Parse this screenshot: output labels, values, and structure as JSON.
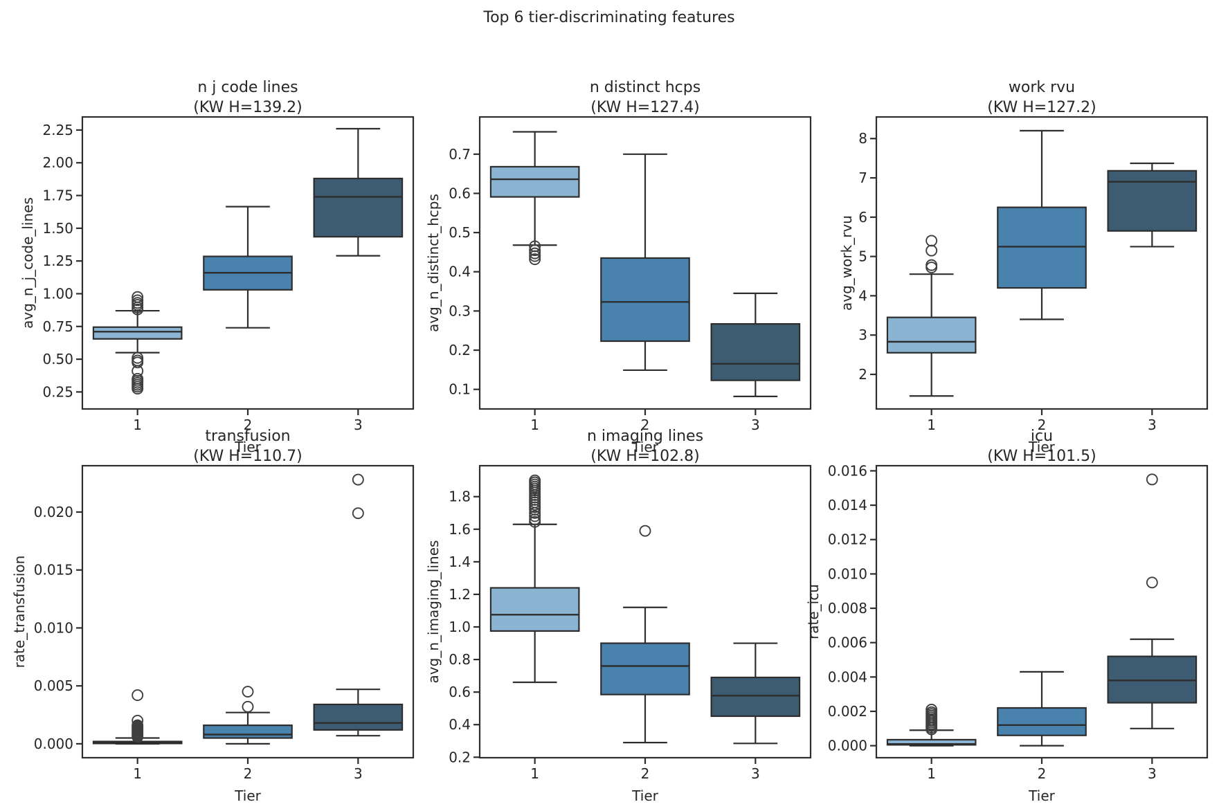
{
  "figure": {
    "suptitle": "Top 6 tier-discriminating features",
    "text_color": "#262626",
    "spine_color": "#2d2d2d",
    "box_edge_color": "#2d2d2d",
    "outlier_color": "#3f3f3f",
    "tier_colors": [
      "#8ab4d2",
      "#4a82ae",
      "#3d5b71"
    ]
  },
  "chart_data": [
    {
      "type": "box",
      "title": "n j code lines",
      "subtitle": "(KW H=139.2)",
      "ylabel": "avg_n_j_code_lines",
      "xlabel": "Tier",
      "categories": [
        "1",
        "2",
        "3"
      ],
      "ylim": [
        0.12,
        2.35
      ],
      "yticks": [
        0.25,
        0.5,
        0.75,
        1.0,
        1.25,
        1.5,
        1.75,
        2.0,
        2.25
      ],
      "ytick_decimals": 2,
      "boxes": [
        {
          "label": "1",
          "whislo": 0.55,
          "q1": 0.655,
          "med": 0.71,
          "q3": 0.745,
          "whishi": 0.87,
          "outliers": [
            0.975,
            0.95,
            0.93,
            0.915,
            0.895,
            0.88,
            0.51,
            0.49,
            0.475,
            0.41,
            0.35,
            0.335,
            0.32,
            0.305,
            0.29,
            0.275
          ]
        },
        {
          "label": "2",
          "whislo": 0.74,
          "q1": 1.03,
          "med": 1.16,
          "q3": 1.285,
          "whishi": 1.665,
          "outliers": []
        },
        {
          "label": "3",
          "whislo": 1.29,
          "q1": 1.435,
          "med": 1.74,
          "q3": 1.88,
          "whishi": 2.26,
          "outliers": []
        }
      ]
    },
    {
      "type": "box",
      "title": "n distinct hcps",
      "subtitle": "(KW H=127.4)",
      "ylabel": "avg_n_distinct_hcps",
      "xlabel": "Tier",
      "categories": [
        "1",
        "2",
        "3"
      ],
      "ylim": [
        0.05,
        0.795
      ],
      "yticks": [
        0.1,
        0.2,
        0.3,
        0.4,
        0.5,
        0.6,
        0.7
      ],
      "ytick_decimals": 1,
      "boxes": [
        {
          "label": "1",
          "whislo": 0.468,
          "q1": 0.591,
          "med": 0.636,
          "q3": 0.668,
          "whishi": 0.757,
          "outliers": [
            0.465,
            0.455,
            0.447,
            0.44,
            0.432
          ]
        },
        {
          "label": "2",
          "whislo": 0.149,
          "q1": 0.223,
          "med": 0.323,
          "q3": 0.435,
          "whishi": 0.7,
          "outliers": []
        },
        {
          "label": "3",
          "whislo": 0.082,
          "q1": 0.123,
          "med": 0.165,
          "q3": 0.267,
          "whishi": 0.345,
          "outliers": []
        }
      ]
    },
    {
      "type": "box",
      "title": "work rvu",
      "subtitle": "(KW H=127.2)",
      "ylabel": "avg_work_rvu",
      "xlabel": "Tier",
      "categories": [
        "1",
        "2",
        "3"
      ],
      "ylim": [
        1.12,
        8.55
      ],
      "yticks": [
        2,
        3,
        4,
        5,
        6,
        7,
        8
      ],
      "ytick_decimals": 0,
      "boxes": [
        {
          "label": "1",
          "whislo": 1.45,
          "q1": 2.55,
          "med": 2.83,
          "q3": 3.45,
          "whishi": 4.55,
          "outliers": [
            5.4,
            5.15,
            4.78,
            4.72
          ]
        },
        {
          "label": "2",
          "whislo": 3.4,
          "q1": 4.2,
          "med": 5.25,
          "q3": 6.25,
          "whishi": 8.2,
          "outliers": []
        },
        {
          "label": "3",
          "whislo": 5.25,
          "q1": 5.65,
          "med": 6.9,
          "q3": 7.18,
          "whishi": 7.37,
          "outliers": []
        }
      ]
    },
    {
      "type": "box",
      "title": "transfusion",
      "subtitle": "(KW H=110.7)",
      "ylabel": "rate_transfusion",
      "xlabel": "Tier",
      "categories": [
        "1",
        "2",
        "3"
      ],
      "ylim": [
        -0.0012,
        0.024
      ],
      "yticks": [
        0.0,
        0.005,
        0.01,
        0.015,
        0.02
      ],
      "ytick_decimals": 3,
      "boxes": [
        {
          "label": "1",
          "whislo": 0.0,
          "q1": 3e-05,
          "med": 0.0001,
          "q3": 0.0002,
          "whishi": 0.0005,
          "outliers": [
            0.0042,
            0.002,
            0.0016,
            0.0015,
            0.0014,
            0.0013,
            0.0012,
            0.0011,
            0.001,
            0.0009,
            0.0008,
            0.0007,
            0.0006
          ]
        },
        {
          "label": "2",
          "whislo": 0.0,
          "q1": 0.0005,
          "med": 0.0008,
          "q3": 0.0016,
          "whishi": 0.0027,
          "outliers": [
            0.0045,
            0.0032
          ]
        },
        {
          "label": "3",
          "whislo": 0.0007,
          "q1": 0.0012,
          "med": 0.0018,
          "q3": 0.0034,
          "whishi": 0.0047,
          "outliers": [
            0.0228,
            0.0199
          ]
        }
      ]
    },
    {
      "type": "box",
      "title": "n imaging lines",
      "subtitle": "(KW H=102.8)",
      "ylabel": "avg_n_imaging_lines",
      "xlabel": "Tier",
      "categories": [
        "1",
        "2",
        "3"
      ],
      "ylim": [
        0.197,
        1.99
      ],
      "yticks": [
        0.2,
        0.4,
        0.6,
        0.8,
        1.0,
        1.2,
        1.4,
        1.6,
        1.8
      ],
      "ytick_decimals": 1,
      "boxes": [
        {
          "label": "1",
          "whislo": 0.66,
          "q1": 0.975,
          "med": 1.075,
          "q3": 1.24,
          "whishi": 1.63,
          "outliers": [
            1.9,
            1.888,
            1.875,
            1.862,
            1.85,
            1.838,
            1.825,
            1.81,
            1.795,
            1.78,
            1.765,
            1.75,
            1.735,
            1.72,
            1.7,
            1.68,
            1.66,
            1.645
          ]
        },
        {
          "label": "2",
          "whislo": 0.29,
          "q1": 0.585,
          "med": 0.76,
          "q3": 0.9,
          "whishi": 1.12,
          "outliers": [
            1.59
          ]
        },
        {
          "label": "3",
          "whislo": 0.285,
          "q1": 0.452,
          "med": 0.578,
          "q3": 0.69,
          "whishi": 0.9,
          "outliers": []
        }
      ]
    },
    {
      "type": "box",
      "title": "icu",
      "subtitle": "(KW H=101.5)",
      "ylabel": "rate_icu",
      "xlabel": "Tier",
      "categories": [
        "1",
        "2",
        "3"
      ],
      "ylim": [
        -0.0007,
        0.0163
      ],
      "yticks": [
        0.0,
        0.002,
        0.004,
        0.006,
        0.008,
        0.01,
        0.012,
        0.014,
        0.016
      ],
      "ytick_decimals": 3,
      "boxes": [
        {
          "label": "1",
          "whislo": 0.0,
          "q1": 5e-05,
          "med": 0.0001,
          "q3": 0.00035,
          "whishi": 0.0009,
          "outliers": [
            0.0021,
            0.00195,
            0.00185,
            0.00175,
            0.00165,
            0.00155,
            0.00145,
            0.00135,
            0.00125,
            0.00115,
            0.00105,
            0.00095
          ]
        },
        {
          "label": "2",
          "whislo": 0.0,
          "q1": 0.0006,
          "med": 0.0012,
          "q3": 0.0022,
          "whishi": 0.0043,
          "outliers": []
        },
        {
          "label": "3",
          "whislo": 0.001,
          "q1": 0.0025,
          "med": 0.0038,
          "q3": 0.0052,
          "whishi": 0.0062,
          "outliers": [
            0.0155,
            0.0095
          ]
        }
      ]
    }
  ]
}
